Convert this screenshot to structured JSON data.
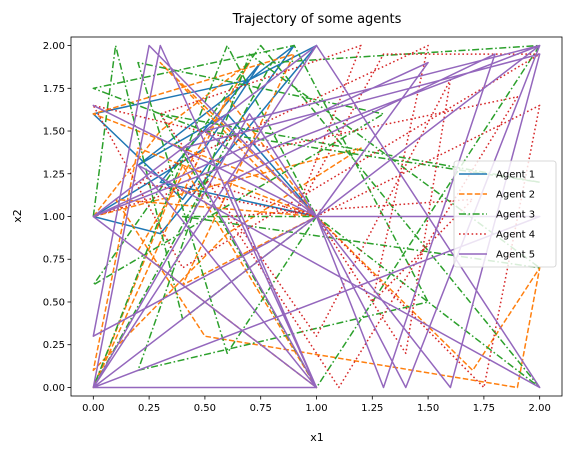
{
  "chart_data": {
    "type": "line",
    "title": "Trajectory of some agents",
    "xlabel": "x1",
    "ylabel": "x2",
    "xlim": [
      -0.1,
      2.1
    ],
    "ylim": [
      -0.05,
      2.05
    ],
    "xticks": [
      "0.00",
      "0.25",
      "0.50",
      "0.75",
      "1.00",
      "1.25",
      "1.50",
      "1.75",
      "2.00"
    ],
    "yticks": [
      "0.00",
      "0.25",
      "0.50",
      "0.75",
      "1.00",
      "1.25",
      "1.50",
      "1.75",
      "2.00"
    ],
    "grid": false,
    "legend_position": "center-right",
    "series": [
      {
        "name": "Agent 1",
        "color": "#1f77b4",
        "dash": "solid",
        "points": [
          [
            0.0,
            1.0
          ],
          [
            0.5,
            1.4
          ],
          [
            0.75,
            1.9
          ],
          [
            0.3,
            1.2
          ],
          [
            1.0,
            1.0
          ],
          [
            0.6,
            1.6
          ],
          [
            0.2,
            1.3
          ],
          [
            0.9,
            2.0
          ],
          [
            0.4,
            1.1
          ],
          [
            0.0,
            1.6
          ],
          [
            0.7,
            1.8
          ],
          [
            1.0,
            2.0
          ],
          [
            0.3,
            0.9
          ],
          [
            0.0,
            1.0
          ]
        ]
      },
      {
        "name": "Agent 2",
        "color": "#ff7f0e",
        "dash": "dashed",
        "points": [
          [
            0.0,
            1.0
          ],
          [
            0.3,
            1.5
          ],
          [
            0.7,
            1.9
          ],
          [
            0.2,
            0.8
          ],
          [
            1.0,
            0.0
          ],
          [
            0.4,
            1.3
          ],
          [
            0.0,
            0.0
          ],
          [
            0.6,
            1.7
          ],
          [
            1.0,
            1.0
          ],
          [
            0.1,
            1.1
          ],
          [
            0.5,
            0.3
          ],
          [
            1.9,
            0.0
          ],
          [
            2.0,
            0.7
          ],
          [
            1.7,
            0.1
          ],
          [
            0.3,
            1.9
          ],
          [
            0.8,
            1.2
          ],
          [
            0.0,
            1.6
          ],
          [
            0.9,
            1.95
          ],
          [
            0.4,
            0.6
          ],
          [
            1.0,
            1.0
          ],
          [
            0.2,
            1.4
          ],
          [
            0.0,
            0.1
          ],
          [
            0.6,
            0.9
          ],
          [
            1.2,
            1.4
          ],
          [
            0.0,
            1.0
          ]
        ]
      },
      {
        "name": "Agent 3",
        "color": "#2ca02c",
        "dash": "dashdot",
        "points": [
          [
            0.0,
            1.0
          ],
          [
            0.1,
            2.0
          ],
          [
            0.4,
            0.4
          ],
          [
            1.0,
            1.0
          ],
          [
            0.6,
            2.0
          ],
          [
            0.0,
            0.0
          ],
          [
            0.8,
            1.9
          ],
          [
            2.0,
            2.0
          ],
          [
            1.0,
            0.0
          ],
          [
            0.3,
            1.6
          ],
          [
            2.0,
            1.2
          ],
          [
            0.5,
            1.5
          ],
          [
            0.0,
            1.75
          ],
          [
            0.9,
            2.0
          ],
          [
            1.5,
            0.5
          ],
          [
            0.2,
            0.1
          ],
          [
            0.7,
            1.95
          ],
          [
            2.0,
            0.7
          ],
          [
            0.4,
            1.0
          ],
          [
            1.0,
            1.0
          ],
          [
            0.6,
            0.2
          ],
          [
            0.2,
            1.9
          ],
          [
            1.3,
            1.6
          ],
          [
            0.0,
            0.6
          ],
          [
            0.75,
            2.0
          ],
          [
            2.0,
            0.0
          ],
          [
            1.0,
            1.0
          ]
        ]
      },
      {
        "name": "Agent 4",
        "color": "#d62728",
        "dash": "dotted",
        "points": [
          [
            0.0,
            1.0
          ],
          [
            0.5,
            1.2
          ],
          [
            1.0,
            1.0
          ],
          [
            1.75,
            0.0
          ],
          [
            2.0,
            1.65
          ],
          [
            1.0,
            1.0
          ],
          [
            1.4,
            0.2
          ],
          [
            1.6,
            1.8
          ],
          [
            1.0,
            0.3
          ],
          [
            0.3,
            1.6
          ],
          [
            1.2,
            2.0
          ],
          [
            0.9,
            1.0
          ],
          [
            1.3,
            1.95
          ],
          [
            2.0,
            1.95
          ],
          [
            0.4,
            0.7
          ],
          [
            0.0,
            1.65
          ],
          [
            0.8,
            1.4
          ],
          [
            1.9,
            1.7
          ],
          [
            1.1,
            0.0
          ],
          [
            0.6,
            1.0
          ],
          [
            1.7,
            1.1
          ],
          [
            1.25,
            0.5
          ],
          [
            1.5,
            2.0
          ],
          [
            0.2,
            1.2
          ],
          [
            1.0,
            1.0
          ]
        ]
      },
      {
        "name": "Agent 5",
        "color": "#9467bd",
        "dash": "solid",
        "points": [
          [
            0.0,
            1.0
          ],
          [
            2.0,
            2.0
          ],
          [
            1.0,
            1.0
          ],
          [
            0.0,
            0.0
          ],
          [
            1.0,
            2.0
          ],
          [
            0.0,
            1.0
          ],
          [
            1.0,
            0.0
          ],
          [
            0.3,
            2.0
          ],
          [
            0.0,
            0.0
          ],
          [
            2.0,
            1.0
          ],
          [
            1.0,
            1.0
          ],
          [
            0.5,
            1.5
          ],
          [
            2.0,
            2.0
          ],
          [
            1.4,
            0.0
          ],
          [
            1.0,
            1.0
          ],
          [
            0.0,
            1.65
          ],
          [
            1.0,
            1.0
          ],
          [
            1.3,
            0.0
          ],
          [
            1.8,
            1.95
          ],
          [
            0.6,
            1.2
          ],
          [
            1.0,
            0.0
          ],
          [
            0.2,
            1.3
          ],
          [
            2.0,
            0.0
          ],
          [
            1.0,
            2.0
          ],
          [
            0.0,
            0.0
          ],
          [
            0.7,
            1.6
          ],
          [
            1.0,
            1.0
          ],
          [
            1.6,
            0.0
          ],
          [
            2.0,
            1.95
          ],
          [
            0.4,
            1.4
          ],
          [
            1.0,
            0.0
          ],
          [
            0.0,
            0.0
          ],
          [
            1.0,
            1.0
          ],
          [
            0.25,
            2.0
          ],
          [
            0.0,
            0.3
          ],
          [
            1.0,
            1.0
          ],
          [
            1.5,
            1.9
          ],
          [
            0.0,
            1.0
          ]
        ]
      }
    ]
  }
}
